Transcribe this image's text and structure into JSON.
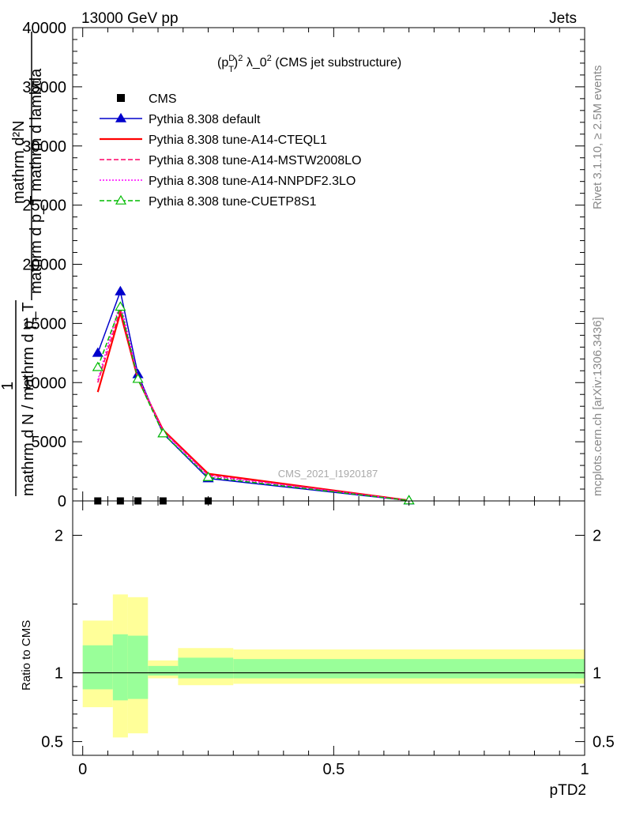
{
  "header": {
    "left": "13000 GeV pp",
    "right": "Jets",
    "watermark": "CMS_2021_I1920187",
    "side_top": "Rivet 3.1.10, ≥ 2.5M events",
    "side_bottom": "mcplots.cern.ch [arXiv:1306.3436]"
  },
  "chart_data": [
    {
      "type": "line",
      "title": "(p_T^D)^2 λ_0^2 (CMS jet substructure)",
      "title_parts": {
        "p": "(p",
        "sup_d": "D",
        "sub_t": "T",
        "close": ")",
        "sq": "2",
        "lambda": " λ_0",
        "sq2": "2",
        "rest": " (CMS jet substructure)"
      },
      "ylabel_lines": [
        "mathrm d²N",
        "mathrm d p_T mathrm d lambda",
        "1",
        "mathrm d N / mathrm d p_T"
      ],
      "ylim": [
        0,
        40000
      ],
      "xlim": [
        -0.02,
        1.0
      ],
      "yticks": [
        0,
        5000,
        10000,
        15000,
        20000,
        25000,
        30000,
        35000,
        40000
      ],
      "ytick_labels": [
        "0",
        "5000",
        "10000",
        "15000",
        "20000",
        "25000",
        "30000",
        "35000",
        "40000"
      ],
      "legend_position": "top-left",
      "series": [
        {
          "name": "CMS",
          "color": "#000000",
          "style": "marker",
          "x": [
            0.03,
            0.075,
            0.11,
            0.16,
            0.25
          ],
          "y": [
            0,
            0,
            0,
            0,
            0
          ]
        },
        {
          "name": "Pythia 8.308 default",
          "color": "#0000cc",
          "style": "solid-triangle",
          "x": [
            0.03,
            0.075,
            0.11,
            0.16,
            0.25,
            0.65
          ],
          "y": [
            12500,
            17700,
            10700,
            5700,
            1900,
            30
          ]
        },
        {
          "name": "Pythia 8.308 tune-A14-CTEQL1",
          "color": "#ff0000",
          "style": "solid",
          "x": [
            0.03,
            0.075,
            0.11,
            0.16,
            0.25,
            0.65
          ],
          "y": [
            9200,
            15900,
            10300,
            6000,
            2300,
            40
          ]
        },
        {
          "name": "Pythia 8.308 tune-A14-MSTW2008LO",
          "color": "#ff0066",
          "style": "dashed",
          "x": [
            0.03,
            0.075,
            0.11,
            0.16,
            0.25,
            0.65
          ],
          "y": [
            10000,
            16200,
            10400,
            5900,
            2200,
            40
          ]
        },
        {
          "name": "Pythia 8.308 tune-A14-NNPDF2.3LO",
          "color": "#ff00ff",
          "style": "dotted",
          "x": [
            0.03,
            0.075,
            0.11,
            0.16,
            0.25,
            0.65
          ],
          "y": [
            10200,
            16800,
            10500,
            5900,
            2100,
            35
          ]
        },
        {
          "name": "Pythia 8.308 tune-CUETP8S1",
          "color": "#00bb00",
          "style": "dashed-open-triangle",
          "x": [
            0.03,
            0.075,
            0.11,
            0.16,
            0.25,
            0.65
          ],
          "y": [
            11300,
            16400,
            10300,
            5700,
            2000,
            35
          ]
        }
      ]
    },
    {
      "type": "area",
      "ylabel": "Ratio to CMS",
      "xlabel": "pTD2",
      "ylim": [
        0.4,
        2.25
      ],
      "xlim": [
        -0.02,
        1.0
      ],
      "yticks": [
        0.5,
        1,
        2
      ],
      "ytick_labels": [
        "0.5",
        "1",
        "2"
      ],
      "xticks": [
        0,
        0.5,
        1
      ],
      "xtick_labels": [
        "0",
        "0.5",
        "1"
      ],
      "bands": [
        {
          "x0": 0.0,
          "x1": 0.06,
          "lo_outer": 0.75,
          "hi_outer": 1.38,
          "lo_inner": 0.88,
          "hi_inner": 1.2
        },
        {
          "x0": 0.06,
          "x1": 0.09,
          "lo_outer": 0.53,
          "hi_outer": 1.57,
          "lo_inner": 0.8,
          "hi_inner": 1.28
        },
        {
          "x0": 0.09,
          "x1": 0.13,
          "lo_outer": 0.56,
          "hi_outer": 1.55,
          "lo_inner": 0.81,
          "hi_inner": 1.27
        },
        {
          "x0": 0.13,
          "x1": 0.19,
          "lo_outer": 0.96,
          "hi_outer": 1.09,
          "lo_inner": 0.98,
          "hi_inner": 1.05
        },
        {
          "x0": 0.19,
          "x1": 0.3,
          "lo_outer": 0.91,
          "hi_outer": 1.18,
          "lo_inner": 0.96,
          "hi_inner": 1.11
        },
        {
          "x0": 0.3,
          "x1": 1.0,
          "lo_outer": 0.92,
          "hi_outer": 1.17,
          "lo_inner": 0.96,
          "hi_inner": 1.1
        }
      ],
      "colors": {
        "outer": "#ffff99",
        "inner": "#99ff99"
      }
    }
  ]
}
